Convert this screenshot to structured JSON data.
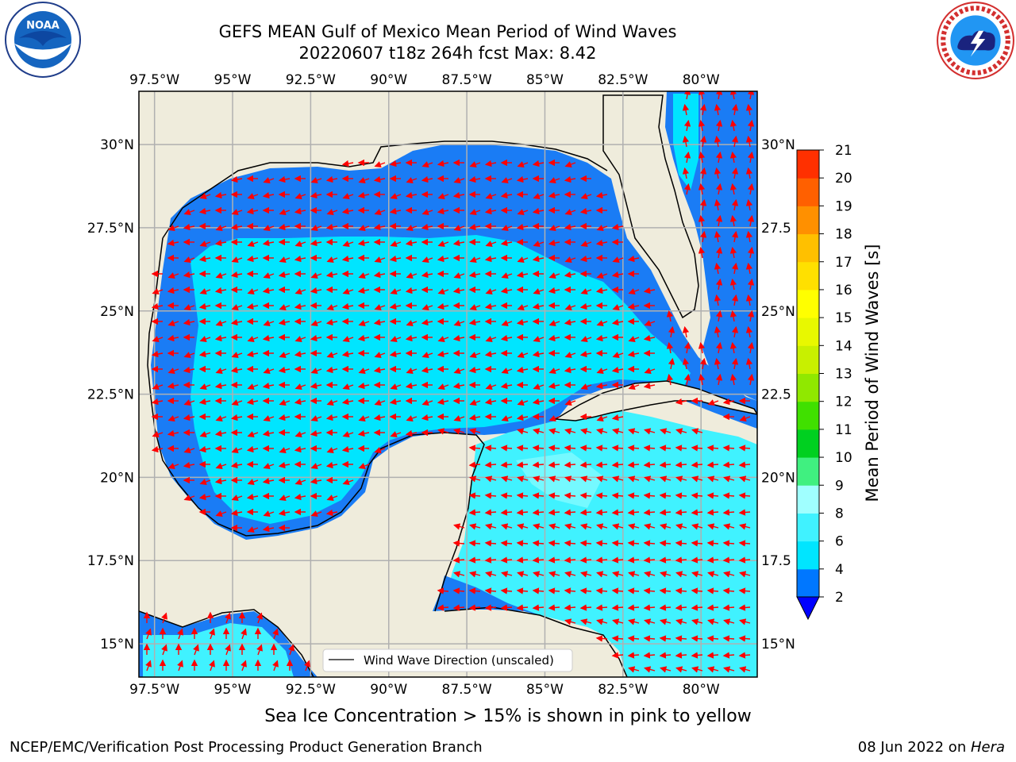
{
  "title": {
    "line1": "GEFS MEAN Gulf of Mexico Mean Period of Wind Waves",
    "line2": "20220607 t18z 264h fcst   Max: 8.42"
  },
  "map": {
    "lon_ticks": [
      "97.5°W",
      "95°W",
      "92.5°W",
      "90°W",
      "87.5°W",
      "85°W",
      "82.5°W",
      "80°W"
    ],
    "lat_ticks_left": [
      "30°N",
      "27.5°N",
      "25°N",
      "22.5°N",
      "20°N",
      "17.5°N",
      "15°N"
    ],
    "lat_ticks_right": [
      "30°N",
      "27.5",
      "25°N",
      "22.5",
      "20°N",
      "17.5",
      "15°N"
    ],
    "lon_range": [
      -98,
      -78.2
    ],
    "lat_range": [
      14,
      31.6
    ],
    "land_color": "#efecdc",
    "arrow_color": "#ff0000",
    "legend_label": "Wind Wave Direction (unscaled)"
  },
  "colorbar": {
    "title": "Mean Period of Wind Waves [s]",
    "tick_labels": [
      "2",
      "4",
      "6",
      "8",
      "9",
      "10",
      "11",
      "12",
      "13",
      "14",
      "15",
      "16",
      "17",
      "18",
      "19",
      "20",
      "21"
    ],
    "colors": [
      "#0077ff",
      "#00e5ff",
      "#40f2ff",
      "#a0ffff",
      "#40f080",
      "#00d020",
      "#40e000",
      "#90e800",
      "#c8f000",
      "#e8f800",
      "#ffff00",
      "#ffe000",
      "#ffc000",
      "#ff9000",
      "#ff6000",
      "#ff3000"
    ],
    "under_color": "#0000ff"
  },
  "note": "Sea Ice Concentration > 15% is shown in pink to yellow",
  "footer": {
    "left": "NCEP/EMC/Verification Post Processing Product Generation Branch",
    "right_date": "08 Jun 2022 on ",
    "right_host": "Hera"
  },
  "logos": {
    "noaa_text": "NOAA",
    "nws_text": "NATIONAL WEATHER SERVICE"
  }
}
